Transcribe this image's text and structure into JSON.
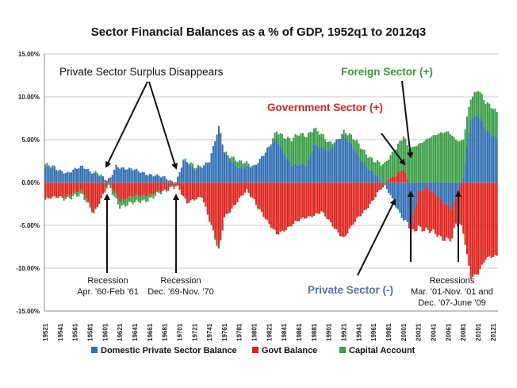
{
  "chart_data": {
    "type": "bar",
    "stacked": true,
    "title": "Sector Financial Balances as a % of GDP, 1952q1 to 2012q3",
    "xlabel": "",
    "ylabel": "",
    "ylim": [
      -15,
      15
    ],
    "y_ticks": [
      "15.00%",
      "10.00%",
      "5.00%",
      "0.00%",
      "-5.00%",
      "-10.00%",
      "-15.00%"
    ],
    "x_tick_labels": [
      "19521",
      "19541",
      "19561",
      "19581",
      "19601",
      "19621",
      "19641",
      "19661",
      "19681",
      "19701",
      "19721",
      "19741",
      "19761",
      "19781",
      "19801",
      "19821",
      "19841",
      "19861",
      "19881",
      "19901",
      "19921",
      "19941",
      "19961",
      "19981",
      "20001",
      "20021",
      "20041",
      "20061",
      "20081",
      "20101",
      "20121"
    ],
    "grid": true,
    "legend_placement": "bottom",
    "series": [
      {
        "name": "Domestic Private Sector Balance",
        "color": "#2f6fb5",
        "keypoints": [
          [
            1952,
            1.8
          ],
          [
            1955,
            1.2
          ],
          [
            1957,
            1.8
          ],
          [
            1959,
            1.0
          ],
          [
            1960.5,
            0.0
          ],
          [
            1961.5,
            2.0
          ],
          [
            1963,
            1.6
          ],
          [
            1966,
            1.0
          ],
          [
            1968,
            0.5
          ],
          [
            1969.5,
            0.0
          ],
          [
            1970.5,
            2.5
          ],
          [
            1972,
            1.5
          ],
          [
            1974,
            2.5
          ],
          [
            1975.3,
            6.5
          ],
          [
            1976,
            3.5
          ],
          [
            1978,
            1.5
          ],
          [
            1980,
            2.0
          ],
          [
            1982,
            4.0
          ],
          [
            1983,
            5.0
          ],
          [
            1985,
            2.0
          ],
          [
            1987,
            2.0
          ],
          [
            1988,
            4.5
          ],
          [
            1990,
            3.5
          ],
          [
            1991,
            5.0
          ],
          [
            1992,
            5.5
          ],
          [
            1994,
            3.0
          ],
          [
            1996,
            1.0
          ],
          [
            1998,
            -1.0
          ],
          [
            2000,
            -4.5
          ],
          [
            2001,
            -5.0
          ],
          [
            2002,
            -1.0
          ],
          [
            2003,
            -0.5
          ],
          [
            2005,
            -2.0
          ],
          [
            2006.5,
            -3.0
          ],
          [
            2008,
            0.5
          ],
          [
            2009,
            7.5
          ],
          [
            2010,
            8.0
          ],
          [
            2011,
            6.0
          ],
          [
            2012.6,
            5.0
          ]
        ]
      },
      {
        "name": "Govt Balance",
        "color": "#e0231c",
        "keypoints": [
          [
            1952,
            -2.0
          ],
          [
            1955,
            -1.5
          ],
          [
            1957,
            -1.0
          ],
          [
            1958.5,
            -3.5
          ],
          [
            1959.5,
            -2.0
          ],
          [
            1960.5,
            0.0
          ],
          [
            1962,
            -2.0
          ],
          [
            1965,
            -1.5
          ],
          [
            1968,
            -1.0
          ],
          [
            1969.5,
            0.0
          ],
          [
            1971,
            -2.5
          ],
          [
            1973,
            -1.5
          ],
          [
            1975.3,
            -8.0
          ],
          [
            1976,
            -4.0
          ],
          [
            1978,
            -2.0
          ],
          [
            1979,
            -1.0
          ],
          [
            1980,
            -2.0
          ],
          [
            1982,
            -5.0
          ],
          [
            1983,
            -6.0
          ],
          [
            1985,
            -5.0
          ],
          [
            1987,
            -4.0
          ],
          [
            1989,
            -3.5
          ],
          [
            1991,
            -5.5
          ],
          [
            1992,
            -6.5
          ],
          [
            1994,
            -4.0
          ],
          [
            1996,
            -2.0
          ],
          [
            1998,
            0.5
          ],
          [
            2000,
            1.5
          ],
          [
            2001,
            -1.0
          ],
          [
            2002,
            -4.0
          ],
          [
            2003,
            -5.0
          ],
          [
            2005,
            -4.5
          ],
          [
            2007,
            -3.0
          ],
          [
            2008,
            -6.0
          ],
          [
            2009,
            -11.0
          ],
          [
            2010,
            -10.5
          ],
          [
            2011,
            -9.0
          ],
          [
            2012.6,
            -8.5
          ]
        ]
      },
      {
        "name": "Capital Account",
        "color": "#3aa047",
        "keypoints": [
          [
            1952,
            0.3
          ],
          [
            1957,
            -0.6
          ],
          [
            1959,
            0.3
          ],
          [
            1961,
            -0.6
          ],
          [
            1964,
            -0.8
          ],
          [
            1967,
            -0.3
          ],
          [
            1970,
            0.0
          ],
          [
            1972,
            0.3
          ],
          [
            1975,
            -0.3
          ],
          [
            1977,
            0.6
          ],
          [
            1978,
            0.8
          ],
          [
            1980,
            0.0
          ],
          [
            1982,
            0.0
          ],
          [
            1983,
            1.0
          ],
          [
            1985,
            3.0
          ],
          [
            1986,
            3.5
          ],
          [
            1987,
            3.5
          ],
          [
            1988,
            2.0
          ],
          [
            1990,
            1.0
          ],
          [
            1991,
            0.0
          ],
          [
            1992,
            0.5
          ],
          [
            1994,
            1.5
          ],
          [
            1996,
            1.5
          ],
          [
            1998,
            2.5
          ],
          [
            2000,
            3.8
          ],
          [
            2001,
            4.0
          ],
          [
            2002,
            4.5
          ],
          [
            2003,
            5.0
          ],
          [
            2005,
            5.8
          ],
          [
            2006,
            6.0
          ],
          [
            2007,
            5.0
          ],
          [
            2008,
            4.5
          ],
          [
            2009,
            2.5
          ],
          [
            2010,
            3.0
          ],
          [
            2011,
            3.2
          ],
          [
            2012.6,
            3.2
          ]
        ]
      }
    ],
    "annotations": {
      "surplus": "Private Sector Surplus Disappears",
      "foreign": "Foreign Sector (+)",
      "government": "Government Sector (+)",
      "private": "Private Sector (-)",
      "recession1": [
        "Recession",
        "Apr. ’60-Feb ’61"
      ],
      "recession2": [
        "Recession",
        "Dec. ’69-Nov. ’70"
      ],
      "recession3": [
        "Recessions",
        "Mar. ’01-Nov. ’01 and",
        "Dec. ’07-June ’09"
      ]
    }
  }
}
